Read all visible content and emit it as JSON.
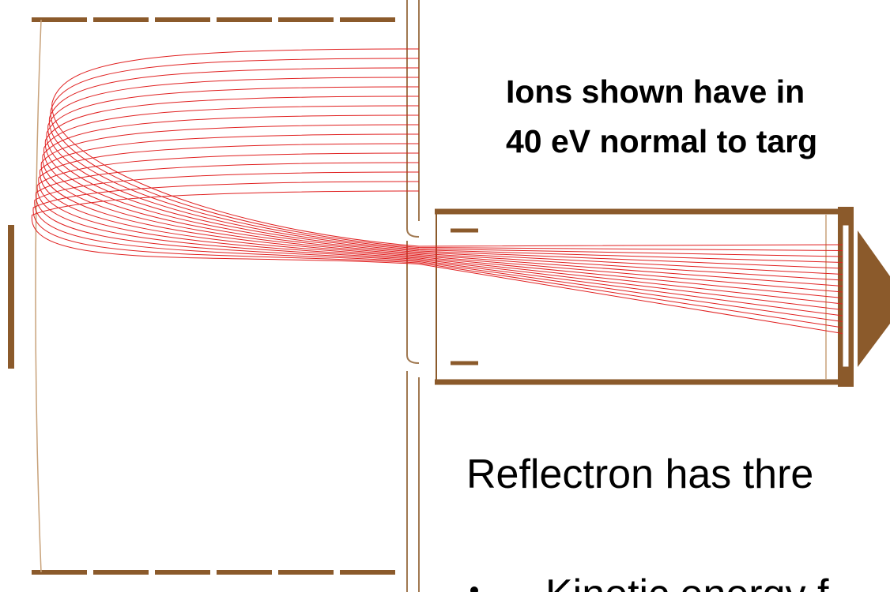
{
  "callout": {
    "line1": "Ions shown have in",
    "line2": "40 eV normal to targ"
  },
  "body": {
    "heading": "Reflectron has thre",
    "bullet": "Kinetic energy f"
  }
}
